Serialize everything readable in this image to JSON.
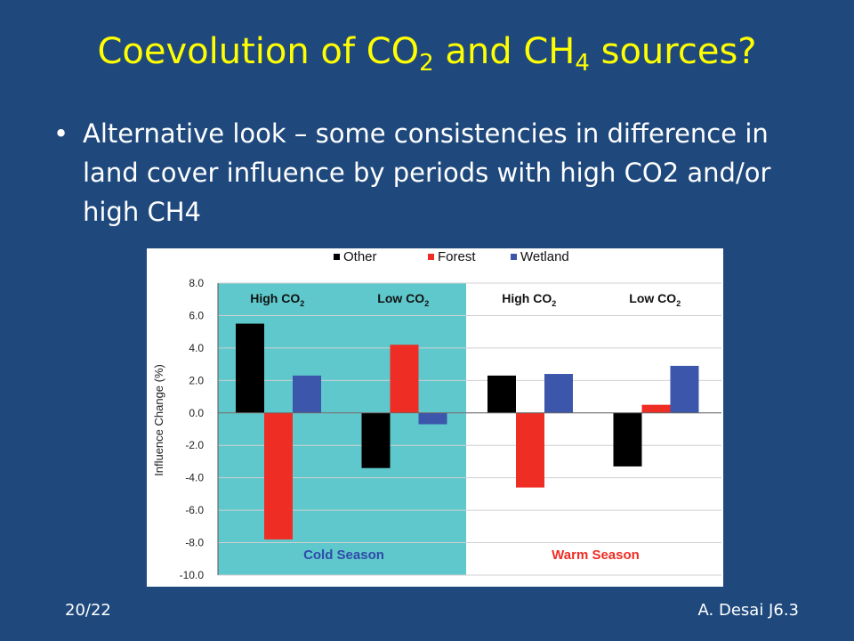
{
  "slide": {
    "title_part1": "Coevolution of CO",
    "title_sub1": "2",
    "title_part2": " and CH",
    "title_sub2": "4",
    "title_part3": " sources?",
    "bullet_symbol": "•",
    "bullet_text": "Alternative look – some consistencies in difference in land cover influence by periods with high CO2 and/or high CH4",
    "page_number": "20/22",
    "author": "A. Desai J6.3"
  },
  "colors": {
    "background": "#1f497d",
    "title": "#ffff00",
    "cold_panel": "#5ec8cc",
    "other": "#000000",
    "forest": "#ee2d24",
    "wetland": "#3b56aa",
    "cold_label": "#2e4ca8",
    "warm_label": "#ee2d24"
  },
  "chart_data": {
    "type": "bar",
    "ylabel": "Influence Change (%)",
    "ylim": [
      -10,
      8
    ],
    "yticks": [
      8,
      6,
      4,
      2,
      0,
      -2,
      -4,
      -6,
      -8,
      -10
    ],
    "ytick_labels": [
      "8.0",
      "6.0",
      "4.0",
      "2.0",
      "0.0",
      "-2.0",
      "-4.0",
      "-6.0",
      "-8.0",
      "-10.0"
    ],
    "legend_position": "top-center",
    "grid": true,
    "groups": [
      {
        "label": "High CO",
        "label_sub": "2",
        "season": "Cold Season"
      },
      {
        "label": "Low CO",
        "label_sub": "2",
        "season": "Cold Season"
      },
      {
        "label": "High CO",
        "label_sub": "2",
        "season": "Warm Season"
      },
      {
        "label": "Low CO",
        "label_sub": "2",
        "season": "Warm Season"
      }
    ],
    "seasons": [
      "Cold Season",
      "Warm Season"
    ],
    "series": [
      {
        "name": "Other",
        "values": [
          5.5,
          -3.4,
          2.3,
          -3.3
        ]
      },
      {
        "name": "Forest",
        "values": [
          -7.8,
          4.2,
          -4.6,
          0.5
        ]
      },
      {
        "name": "Wetland",
        "values": [
          2.3,
          -0.7,
          2.4,
          2.9
        ]
      }
    ]
  }
}
